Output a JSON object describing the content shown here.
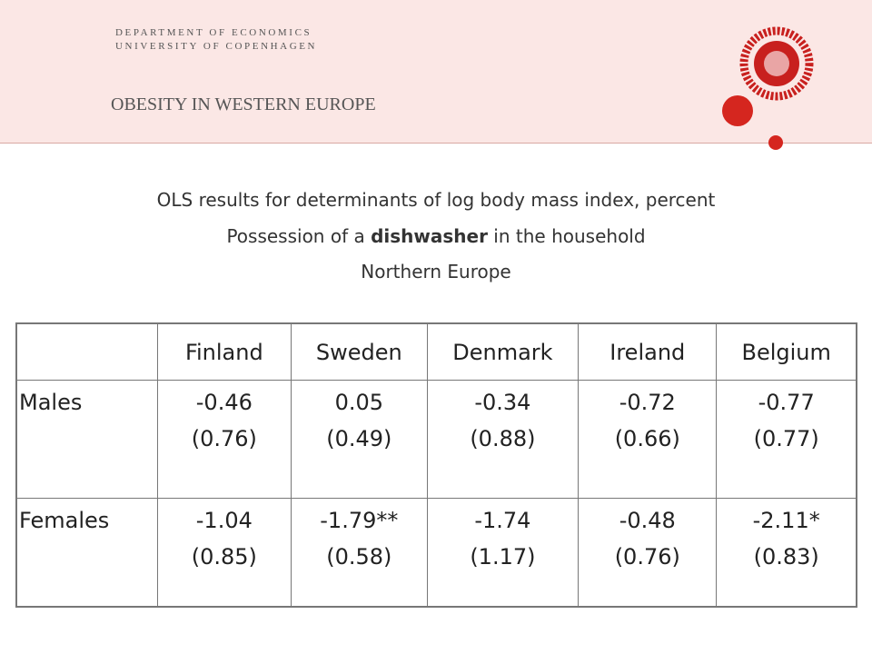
{
  "header": {
    "department": "DEPARTMENT OF ECONOMICS",
    "university": "UNIVERSITY OF COPENHAGEN",
    "title": "OBESITY IN WESTERN EUROPE"
  },
  "subtitle": {
    "line1": "OLS results for determinants of log body mass index, percent",
    "line2": [
      "Possession of a ",
      "dishwasher",
      " in the household"
    ],
    "line3": "Northern Europe"
  },
  "table": {
    "columns": [
      "Finland",
      "Sweden",
      "Denmark",
      "Ireland",
      "Belgium"
    ],
    "rows": [
      {
        "label": "Males",
        "cells": [
          [
            "-0.46",
            "(0.76)"
          ],
          [
            "0.05",
            "(0.49)"
          ],
          [
            "-0.34",
            "(0.88)"
          ],
          [
            "-0.72",
            "(0.66)"
          ],
          [
            "-0.77",
            "(0.77)"
          ]
        ]
      },
      {
        "label": "Females",
        "cells": [
          [
            "-1.04",
            "(0.85)"
          ],
          [
            "-1.79**",
            "(0.58)"
          ],
          [
            "-1.74",
            "(1.17)"
          ],
          [
            "-0.48",
            "(0.76)"
          ],
          [
            "-2.11*",
            "(0.83)"
          ]
        ]
      }
    ]
  }
}
